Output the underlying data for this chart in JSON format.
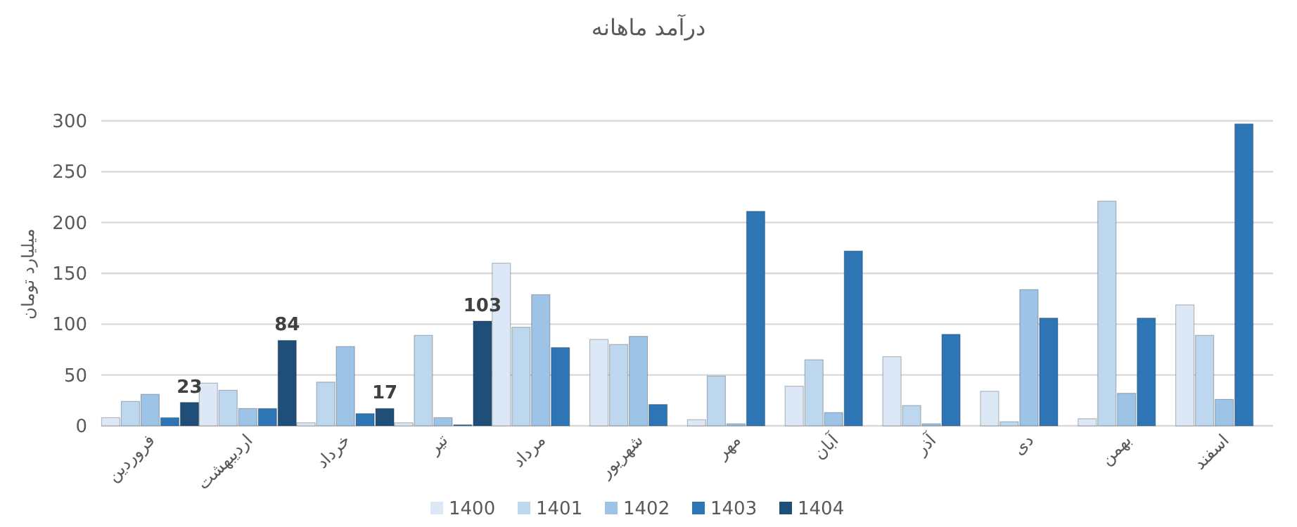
{
  "chart_data": {
    "type": "bar",
    "title": "درآمد ماهانه",
    "ylabel": "میلیارد تومان",
    "categories": [
      "فروردین",
      "اردیبهشت",
      "خرداد",
      "تیر",
      "مرداد",
      "شهریور",
      "مهر",
      "آبان",
      "آذر",
      "دی",
      "بهمن",
      "اسفند"
    ],
    "series": [
      {
        "name": "1400",
        "color": "#dde8f6",
        "values": [
          8,
          42,
          3,
          3,
          160,
          85,
          6,
          39,
          68,
          34,
          7,
          119
        ]
      },
      {
        "name": "1401",
        "color": "#bdd7ee",
        "values": [
          24,
          35,
          43,
          89,
          97,
          80,
          49,
          65,
          20,
          4,
          221,
          89
        ]
      },
      {
        "name": "1402",
        "color": "#9dc3e6",
        "values": [
          31,
          17,
          78,
          8,
          129,
          88,
          2,
          13,
          2,
          134,
          32,
          26
        ]
      },
      {
        "name": "1403",
        "color": "#2e75b6",
        "values": [
          8,
          17,
          12,
          1,
          77,
          21,
          211,
          172,
          90,
          106,
          106,
          297
        ]
      },
      {
        "name": "1404",
        "color": "#1f4e79",
        "values": [
          23,
          84,
          17,
          103,
          null,
          null,
          null,
          null,
          null,
          null,
          null,
          null
        ],
        "value_labels": [
          "23",
          "84",
          "17",
          "103",
          null,
          null,
          null,
          null,
          null,
          null,
          null,
          null
        ]
      }
    ],
    "ylim": [
      0,
      300
    ],
    "yticks": [
      0,
      50,
      100,
      150,
      200,
      250,
      300
    ],
    "grid": "y",
    "legend": "bottom"
  }
}
